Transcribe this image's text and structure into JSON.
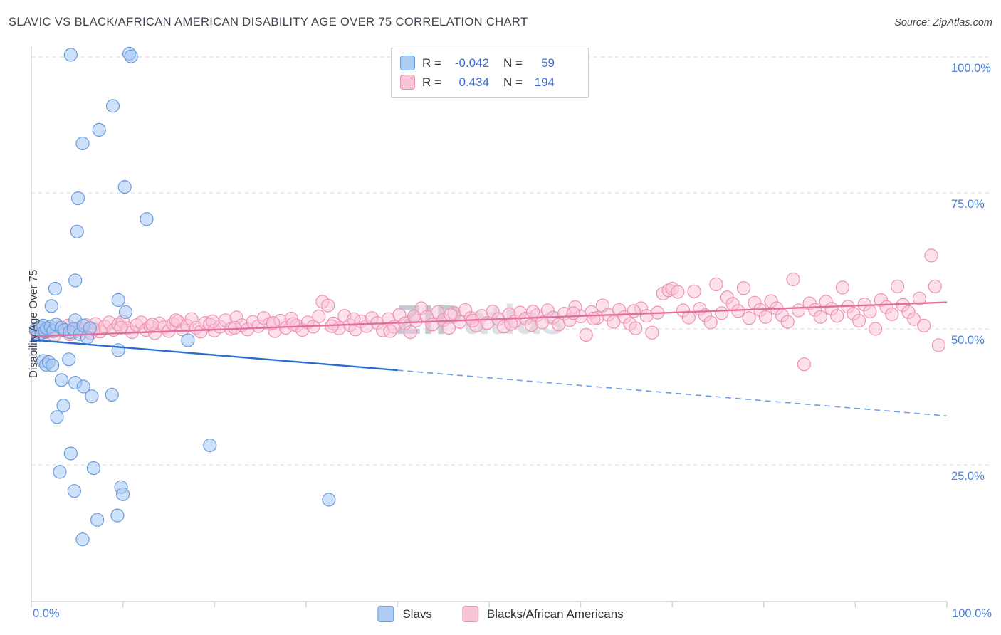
{
  "title": "SLAVIC VS BLACK/AFRICAN AMERICAN DISABILITY AGE OVER 75 CORRELATION CHART",
  "source": "Source: ZipAtlas.com",
  "y_axis_label": "Disability Age Over 75",
  "y_ticks": [
    "100.0%",
    "75.0%",
    "50.0%",
    "25.0%"
  ],
  "x_axis": {
    "min_label": "0.0%",
    "max_label": "100.0%"
  },
  "watermark": {
    "part1": "ZIP",
    "part2": "atlas"
  },
  "stats": {
    "slavs": {
      "r_label": "R =",
      "r_value": "-0.042",
      "n_label": "N =",
      "n_value": "59"
    },
    "blacks": {
      "r_label": "R =",
      "r_value": "0.434",
      "n_label": "N =",
      "n_value": "194"
    }
  },
  "bottom_legend": [
    {
      "label": "Slavs"
    },
    {
      "label": "Blacks/African Americans"
    }
  ],
  "colors": {
    "accent_blue": "#3a6fd8",
    "tick_blue": "#4a82d8",
    "slavs_fill": "#aecdf5",
    "slavs_stroke": "#6b9bd8",
    "blacks_fill": "#f9c4d7",
    "blacks_stroke": "#ee92b2",
    "slavs_trend": "#2b6bd4",
    "slavs_trend_dash": "#6d9de8",
    "blacks_trend": "#e26d9f",
    "gridline": "#d8d8d8",
    "axis": "#ccd2d9"
  },
  "chart_data": {
    "type": "scatter",
    "title": "Slavic vs Black/African American Disability Age Over 75",
    "xlabel": "",
    "ylabel": "Disability Age Over 75",
    "xlim": [
      0,
      100
    ],
    "ylim": [
      0,
      105
    ],
    "y_gridlines": [
      25,
      50,
      75,
      100
    ],
    "x_tick_count": 10,
    "legend_position": "top-center",
    "series": [
      {
        "name": "Slavs",
        "R": -0.042,
        "N": 59,
        "point_fill": "rgba(165,200,245,0.55)",
        "point_stroke": "#6b9bd8",
        "trend": {
          "x0": 0,
          "y0": 48.0,
          "x1": 100,
          "y1": 34.0,
          "solid_until": 40
        },
        "points": [
          [
            4.3,
            100.4
          ],
          [
            10.7,
            100.6
          ],
          [
            10.9,
            100.1
          ],
          [
            8.9,
            91.0
          ],
          [
            7.4,
            86.6
          ],
          [
            5.6,
            84.1
          ],
          [
            10.2,
            76.1
          ],
          [
            5.1,
            74.0
          ],
          [
            12.6,
            70.2
          ],
          [
            5.0,
            67.9
          ],
          [
            4.8,
            58.9
          ],
          [
            2.6,
            57.4
          ],
          [
            2.2,
            54.2
          ],
          [
            4.8,
            51.6
          ],
          [
            0.5,
            49.9
          ],
          [
            0.7,
            48.8
          ],
          [
            0.9,
            50.3
          ],
          [
            1.1,
            49.2
          ],
          [
            1.3,
            50.6
          ],
          [
            1.5,
            49.5
          ],
          [
            1.7,
            50.1
          ],
          [
            2.1,
            50.4
          ],
          [
            2.4,
            49.6
          ],
          [
            2.7,
            50.8
          ],
          [
            3.3,
            50.2
          ],
          [
            3.6,
            49.8
          ],
          [
            4.2,
            49.4
          ],
          [
            4.6,
            50.0
          ],
          [
            5.3,
            49.0
          ],
          [
            5.7,
            50.6
          ],
          [
            6.1,
            48.4
          ],
          [
            6.4,
            50.1
          ],
          [
            9.5,
            55.3
          ],
          [
            10.3,
            53.1
          ],
          [
            9.5,
            46.1
          ],
          [
            17.1,
            47.9
          ],
          [
            1.3,
            44.1
          ],
          [
            1.6,
            43.4
          ],
          [
            1.9,
            43.9
          ],
          [
            2.3,
            43.3
          ],
          [
            4.1,
            44.4
          ],
          [
            3.3,
            40.6
          ],
          [
            4.8,
            40.1
          ],
          [
            5.7,
            39.4
          ],
          [
            6.6,
            37.6
          ],
          [
            8.8,
            37.9
          ],
          [
            3.5,
            35.9
          ],
          [
            2.8,
            33.8
          ],
          [
            4.3,
            27.1
          ],
          [
            6.8,
            24.4
          ],
          [
            3.1,
            23.7
          ],
          [
            4.7,
            20.2
          ],
          [
            9.8,
            20.9
          ],
          [
            10.0,
            19.6
          ],
          [
            7.2,
            14.9
          ],
          [
            9.4,
            15.7
          ],
          [
            5.6,
            11.3
          ],
          [
            32.5,
            18.6
          ],
          [
            19.5,
            28.6
          ]
        ]
      },
      {
        "name": "Blacks/African Americans",
        "R": 0.434,
        "N": 194,
        "point_fill": "rgba(249,196,215,0.5)",
        "point_stroke": "#ee92b2",
        "trend": {
          "x0": 0,
          "y0": 48.6,
          "x1": 100,
          "y1": 54.9
        },
        "points": [
          [
            0.5,
            49.6
          ],
          [
            0.8,
            48.9
          ],
          [
            1.2,
            50.2
          ],
          [
            1.6,
            49.4
          ],
          [
            2.0,
            50.0
          ],
          [
            2.5,
            48.8
          ],
          [
            3.0,
            50.3
          ],
          [
            3.5,
            49.7
          ],
          [
            4.0,
            50.6
          ],
          [
            4.5,
            49.3
          ],
          [
            5.0,
            50.1
          ],
          [
            5.5,
            49.8
          ],
          [
            6.0,
            50.7
          ],
          [
            6.5,
            49.2
          ],
          [
            7.0,
            50.9
          ],
          [
            7.5,
            49.5
          ],
          [
            8.0,
            50.4
          ],
          [
            8.5,
            51.2
          ],
          [
            9.0,
            49.8
          ],
          [
            9.5,
            50.8
          ],
          [
            10.0,
            51.4
          ],
          [
            10.5,
            50.1
          ],
          [
            11.0,
            49.4
          ],
          [
            11.5,
            50.7
          ],
          [
            12.0,
            51.2
          ],
          [
            12.5,
            49.8
          ],
          [
            13.0,
            50.5
          ],
          [
            13.5,
            49.2
          ],
          [
            14.0,
            51.0
          ],
          [
            14.5,
            50.3
          ],
          [
            15.0,
            49.6
          ],
          [
            15.5,
            50.9
          ],
          [
            16.0,
            51.4
          ],
          [
            16.5,
            49.9
          ],
          [
            17.0,
            50.6
          ],
          [
            17.5,
            51.8
          ],
          [
            18.0,
            50.2
          ],
          [
            18.5,
            49.5
          ],
          [
            19.0,
            51.1
          ],
          [
            19.5,
            50.8
          ],
          [
            20.0,
            49.7
          ],
          [
            20.6,
            50.4
          ],
          [
            21.2,
            51.6
          ],
          [
            21.8,
            50.0
          ],
          [
            22.4,
            52.1
          ],
          [
            23.0,
            50.7
          ],
          [
            23.6,
            49.9
          ],
          [
            24.2,
            51.3
          ],
          [
            24.8,
            50.5
          ],
          [
            25.4,
            52.0
          ],
          [
            26.0,
            50.9
          ],
          [
            26.6,
            49.6
          ],
          [
            27.2,
            51.5
          ],
          [
            27.8,
            50.2
          ],
          [
            28.4,
            51.9
          ],
          [
            29.0,
            50.6
          ],
          [
            29.6,
            49.8
          ],
          [
            30.2,
            51.2
          ],
          [
            30.8,
            50.4
          ],
          [
            31.4,
            52.3
          ],
          [
            31.8,
            55.0
          ],
          [
            32.4,
            54.3
          ],
          [
            33.0,
            51.0
          ],
          [
            33.6,
            50.1
          ],
          [
            34.2,
            52.4
          ],
          [
            34.8,
            50.7
          ],
          [
            35.4,
            49.9
          ],
          [
            36.0,
            51.4
          ],
          [
            36.6,
            50.5
          ],
          [
            37.2,
            52.0
          ],
          [
            37.8,
            51.1
          ],
          [
            38.4,
            49.7
          ],
          [
            39.0,
            51.8
          ],
          [
            39.6,
            50.4
          ],
          [
            40.2,
            52.6
          ],
          [
            40.8,
            51.0
          ],
          [
            41.4,
            49.4
          ],
          [
            42.0,
            51.5
          ],
          [
            42.6,
            53.8
          ],
          [
            43.2,
            52.2
          ],
          [
            43.8,
            50.8
          ],
          [
            44.4,
            53.1
          ],
          [
            45.0,
            51.6
          ],
          [
            45.6,
            50.2
          ],
          [
            46.2,
            52.9
          ],
          [
            46.8,
            51.3
          ],
          [
            47.4,
            53.5
          ],
          [
            48.0,
            52.0
          ],
          [
            48.6,
            50.6
          ],
          [
            49.2,
            52.4
          ],
          [
            49.8,
            51.1
          ],
          [
            50.4,
            53.2
          ],
          [
            51.0,
            51.8
          ],
          [
            51.6,
            50.4
          ],
          [
            52.2,
            52.7
          ],
          [
            52.8,
            51.4
          ],
          [
            53.4,
            53.0
          ],
          [
            54.0,
            51.9
          ],
          [
            54.6,
            50.7
          ],
          [
            55.2,
            52.5
          ],
          [
            55.8,
            51.2
          ],
          [
            56.4,
            53.4
          ],
          [
            57.0,
            52.1
          ],
          [
            57.6,
            50.8
          ],
          [
            58.2,
            52.8
          ],
          [
            58.8,
            51.6
          ],
          [
            59.4,
            54.0
          ],
          [
            60.0,
            52.3
          ],
          [
            60.6,
            48.9
          ],
          [
            61.2,
            53.1
          ],
          [
            61.8,
            52.0
          ],
          [
            62.4,
            54.3
          ],
          [
            63.0,
            52.6
          ],
          [
            63.6,
            51.3
          ],
          [
            64.2,
            53.5
          ],
          [
            64.8,
            52.2
          ],
          [
            65.4,
            50.9
          ],
          [
            66.0,
            50.1
          ],
          [
            66.6,
            53.8
          ],
          [
            67.2,
            52.4
          ],
          [
            67.8,
            49.3
          ],
          [
            68.4,
            53.0
          ],
          [
            69.0,
            56.5
          ],
          [
            69.6,
            57.1
          ],
          [
            70.0,
            57.4
          ],
          [
            70.6,
            56.8
          ],
          [
            71.2,
            53.4
          ],
          [
            71.8,
            52.1
          ],
          [
            72.4,
            56.9
          ],
          [
            73.0,
            53.7
          ],
          [
            73.6,
            52.5
          ],
          [
            74.2,
            51.2
          ],
          [
            74.8,
            58.2
          ],
          [
            75.4,
            52.9
          ],
          [
            76.0,
            55.8
          ],
          [
            76.6,
            54.6
          ],
          [
            77.2,
            53.3
          ],
          [
            77.8,
            57.5
          ],
          [
            78.4,
            52.0
          ],
          [
            79.0,
            54.8
          ],
          [
            79.6,
            53.5
          ],
          [
            80.2,
            52.2
          ],
          [
            80.8,
            55.1
          ],
          [
            81.4,
            53.8
          ],
          [
            82.0,
            52.5
          ],
          [
            82.6,
            51.3
          ],
          [
            83.2,
            59.1
          ],
          [
            83.8,
            53.4
          ],
          [
            84.4,
            43.5
          ],
          [
            85.0,
            54.7
          ],
          [
            85.6,
            53.5
          ],
          [
            86.2,
            52.2
          ],
          [
            86.8,
            55.0
          ],
          [
            87.4,
            53.7
          ],
          [
            88.0,
            52.4
          ],
          [
            88.6,
            57.6
          ],
          [
            89.2,
            54.1
          ],
          [
            89.8,
            52.8
          ],
          [
            90.4,
            51.5
          ],
          [
            91.0,
            54.5
          ],
          [
            91.6,
            53.2
          ],
          [
            92.2,
            50.0
          ],
          [
            92.8,
            55.3
          ],
          [
            93.4,
            54.0
          ],
          [
            94.0,
            52.7
          ],
          [
            94.6,
            57.8
          ],
          [
            95.2,
            54.4
          ],
          [
            95.8,
            53.1
          ],
          [
            96.4,
            51.8
          ],
          [
            97.0,
            55.6
          ],
          [
            4.2,
            49.0
          ],
          [
            9.8,
            50.2
          ],
          [
            15.8,
            51.6
          ],
          [
            22.2,
            50.2
          ],
          [
            28.6,
            50.9
          ],
          [
            35.2,
            51.8
          ],
          [
            41.8,
            52.3
          ],
          [
            48.2,
            51.5
          ],
          [
            54.8,
            53.2
          ],
          [
            61.4,
            51.9
          ],
          [
            6.8,
            49.9
          ],
          [
            13.2,
            50.8
          ],
          [
            19.8,
            51.4
          ],
          [
            26.4,
            51.1
          ],
          [
            32.8,
            50.5
          ],
          [
            39.2,
            49.6
          ],
          [
            45.8,
            52.6
          ],
          [
            52.4,
            50.9
          ],
          [
            59.2,
            52.9
          ],
          [
            65.8,
            53.3
          ],
          [
            98.3,
            63.5
          ],
          [
            98.7,
            57.8
          ],
          [
            99.1,
            47.0
          ],
          [
            97.5,
            50.6
          ]
        ]
      }
    ]
  }
}
